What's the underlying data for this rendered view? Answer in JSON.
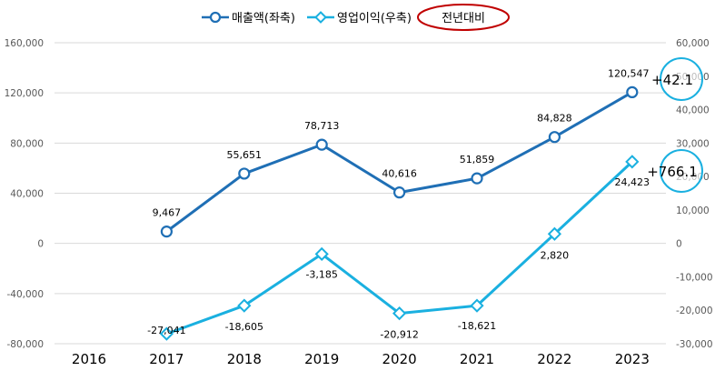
{
  "chart_data": {
    "type": "line",
    "categories": [
      "2016",
      "2017",
      "2018",
      "2019",
      "2020",
      "2021",
      "2022",
      "2023"
    ],
    "series": [
      {
        "name": "매출액(좌축)",
        "axis": "left",
        "color": "#1f6fb5",
        "marker": "circle",
        "values": [
          null,
          9467,
          55651,
          78713,
          40616,
          51859,
          84828,
          120547
        ],
        "labels": [
          "",
          "9,467",
          "55,651",
          "78,713",
          "40,616",
          "51,859",
          "84,828",
          "120,547"
        ]
      },
      {
        "name": "영업이익(우축)",
        "axis": "right",
        "color": "#1ab0e0",
        "marker": "diamond",
        "values": [
          null,
          -27041,
          -18605,
          -3185,
          -20912,
          -18621,
          2820,
          24423
        ],
        "labels": [
          "",
          "-27,041",
          "-18,605",
          "-3,185",
          "-20,912",
          "-18,621",
          "2,820",
          "24,423"
        ]
      }
    ],
    "left_axis": {
      "ylim": [
        -80000,
        160000
      ],
      "ticks": [
        "160,000",
        "120,000",
        "80,000",
        "40,000",
        "0",
        "-40,000",
        "-80,000"
      ],
      "values": [
        160000,
        120000,
        80000,
        40000,
        0,
        -40000,
        -80000
      ]
    },
    "right_axis": {
      "ylim": [
        -30000,
        60000
      ],
      "ticks": [
        "60,000",
        "50,000",
        "40,000",
        "30,000",
        "20,000",
        "10,000",
        "0",
        "-10,000",
        "-20,000",
        "-30,000"
      ],
      "values": [
        60000,
        50000,
        40000,
        30000,
        20000,
        10000,
        0,
        -10000,
        -20000,
        -30000
      ]
    },
    "legend": {
      "position": "top",
      "comparison_label": "전년대비"
    },
    "callouts": [
      {
        "series": "매출액(좌축)",
        "text": "+42.1"
      },
      {
        "series": "영업이익(우축)",
        "text": "+766.1"
      }
    ],
    "grid": true
  }
}
